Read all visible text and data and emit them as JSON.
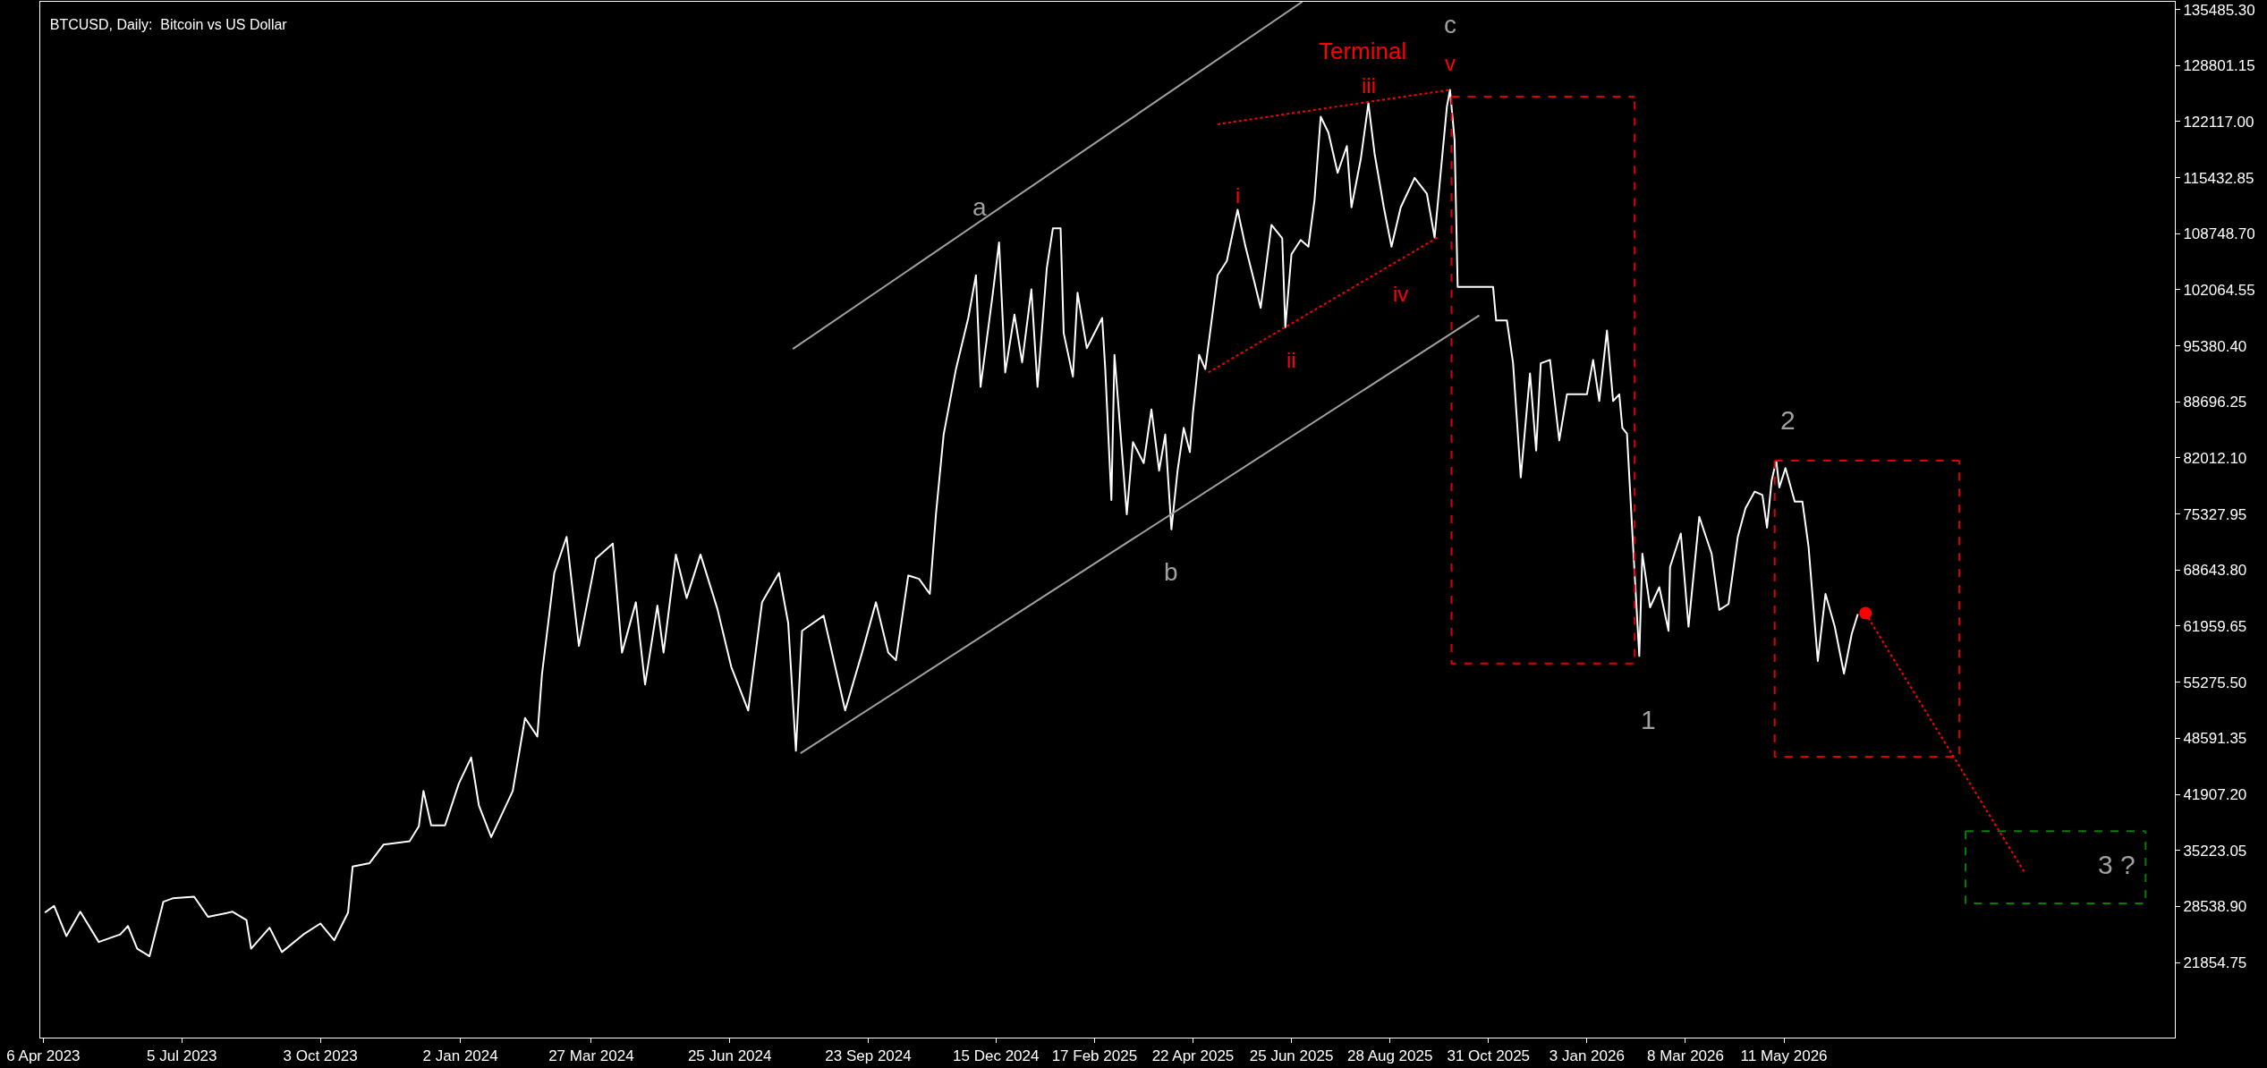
{
  "chart_data": {
    "type": "line",
    "title": "BTCUSD, Daily:  Bitcoin vs US Dollar",
    "grid": false,
    "legend": false,
    "xlim": [
      "2023-04-04",
      "2027-01-20"
    ],
    "ylim": [
      12900,
      136400
    ],
    "xticks": [
      {
        "value": "2023-04-06",
        "label": "6 Apr 2023"
      },
      {
        "value": "2023-07-05",
        "label": "5 Jul 2023"
      },
      {
        "value": "2023-10-03",
        "label": "3 Oct 2023"
      },
      {
        "value": "2024-01-02",
        "label": "2 Jan 2024"
      },
      {
        "value": "2024-03-27",
        "label": "27 Mar 2024"
      },
      {
        "value": "2024-06-25",
        "label": "25 Jun 2024"
      },
      {
        "value": "2024-09-23",
        "label": "23 Sep 2024"
      },
      {
        "value": "2024-12-15",
        "label": "15 Dec 2024"
      },
      {
        "value": "2025-02-17",
        "label": "17 Feb 2025"
      },
      {
        "value": "2025-04-22",
        "label": "22 Apr 2025"
      },
      {
        "value": "2025-06-25",
        "label": "25 Jun 2025"
      },
      {
        "value": "2025-08-28",
        "label": "28 Aug 2025"
      },
      {
        "value": "2025-10-31",
        "label": "31 Oct 2025"
      },
      {
        "value": "2026-01-03",
        "label": "3 Jan 2026"
      },
      {
        "value": "2026-03-08",
        "label": "8 Mar 2026"
      },
      {
        "value": "2026-05-11",
        "label": "11 May 2026"
      }
    ],
    "yticks": [
      {
        "value": 135485.3,
        "label": "135485.30"
      },
      {
        "value": 128801.15,
        "label": "128801.15"
      },
      {
        "value": 122117,
        "label": "122117.00"
      },
      {
        "value": 115432.85,
        "label": "115432.85"
      },
      {
        "value": 108748.7,
        "label": "108748.70"
      },
      {
        "value": 102064.55,
        "label": "102064.55"
      },
      {
        "value": 95380.4,
        "label": "95380.40"
      },
      {
        "value": 88696.25,
        "label": "88696.25"
      },
      {
        "value": 82012.1,
        "label": "82012.10"
      },
      {
        "value": 75327.95,
        "label": "75327.95"
      },
      {
        "value": 68643.8,
        "label": "68643.80"
      },
      {
        "value": 61959.65,
        "label": "61959.65"
      },
      {
        "value": 55275.5,
        "label": "55275.50"
      },
      {
        "value": 48591.35,
        "label": "48591.35"
      },
      {
        "value": 41907.2,
        "label": "41907.20"
      },
      {
        "value": 35223.05,
        "label": "35223.05"
      },
      {
        "value": 28538.9,
        "label": "28538.90"
      },
      {
        "value": 21854.75,
        "label": "21854.75"
      }
    ],
    "series": [
      {
        "type": "line",
        "color": "#ffffff",
        "line_style": "solid",
        "x": [
          "2023-04-07",
          "2023-04-13",
          "2023-04-21",
          "2023-04-30",
          "2023-05-12",
          "2023-05-26",
          "2023-05-31",
          "2023-06-06",
          "2023-06-14",
          "2023-06-23",
          "2023-06-29",
          "2023-07-13",
          "2023-07-22",
          "2023-08-07",
          "2023-08-16",
          "2023-08-19",
          "2023-08-31",
          "2023-09-08",
          "2023-09-22",
          "2023-10-03",
          "2023-10-12",
          "2023-10-21",
          "2023-10-24",
          "2023-11-04",
          "2023-11-13",
          "2023-11-30",
          "2023-12-06",
          "2023-12-09",
          "2023-12-14",
          "2023-12-23",
          "2024-01-01",
          "2024-01-09",
          "2024-01-14",
          "2024-01-22",
          "2024-02-05",
          "2024-02-13",
          "2024-02-21",
          "2024-02-24",
          "2024-03-03",
          "2024-03-11",
          "2024-03-19",
          "2024-03-30",
          "2024-04-10",
          "2024-04-16",
          "2024-04-25",
          "2024-05-01",
          "2024-05-09",
          "2024-05-13",
          "2024-05-21",
          "2024-05-28",
          "2024-06-06",
          "2024-06-17",
          "2024-06-26",
          "2024-07-07",
          "2024-07-16",
          "2024-07-27",
          "2024-08-02",
          "2024-08-07",
          "2024-08-11",
          "2024-08-25",
          "2024-09-08",
          "2024-09-19",
          "2024-09-28",
          "2024-10-06",
          "2024-10-11",
          "2024-10-19",
          "2024-10-26",
          "2024-11-02",
          "2024-11-06",
          "2024-11-11",
          "2024-11-19",
          "2024-11-27",
          "2024-12-02",
          "2024-12-05",
          "2024-12-13",
          "2024-12-17",
          "2024-12-21",
          "2024-12-27",
          "2025-01-01",
          "2025-01-07",
          "2025-01-11",
          "2025-01-17",
          "2025-01-21",
          "2025-01-26",
          "2025-01-28",
          "2025-02-03",
          "2025-02-06",
          "2025-02-12",
          "2025-02-22",
          "2025-02-24",
          "2025-02-28",
          "2025-03-02",
          "2025-03-10",
          "2025-03-14",
          "2025-03-21",
          "2025-03-26",
          "2025-03-31",
          "2025-04-04",
          "2025-04-08",
          "2025-04-12",
          "2025-04-16",
          "2025-04-20",
          "2025-04-22",
          "2025-04-26",
          "2025-04-30",
          "2025-05-08",
          "2025-05-14",
          "2025-05-21",
          "2025-05-26",
          "2025-06-01",
          "2025-06-05",
          "2025-06-12",
          "2025-06-19",
          "2025-06-21",
          "2025-06-25",
          "2025-07-01",
          "2025-07-06",
          "2025-07-10",
          "2025-07-14",
          "2025-07-19",
          "2025-07-25",
          "2025-07-31",
          "2025-08-03",
          "2025-08-09",
          "2025-08-14",
          "2025-08-18",
          "2025-08-24",
          "2025-08-29",
          "2025-09-04",
          "2025-09-13",
          "2025-09-21",
          "2025-09-26",
          "2025-10-04",
          "2025-10-06",
          "2025-10-09",
          "2025-10-11",
          "2025-11-03",
          "2025-11-05",
          "2025-11-12",
          "2025-11-16",
          "2025-11-21",
          "2025-11-27",
          "2025-12-01",
          "2025-12-04",
          "2025-12-10",
          "2025-12-16",
          "2025-12-21",
          "2026-01-03",
          "2026-01-07",
          "2026-01-11",
          "2026-01-16",
          "2026-01-20",
          "2026-01-24",
          "2026-01-26",
          "2026-01-29",
          "2026-02-02",
          "2026-02-06",
          "2026-02-08",
          "2026-02-13",
          "2026-02-19",
          "2026-02-25",
          "2026-02-26",
          "2026-03-05",
          "2026-03-10",
          "2026-03-17",
          "2026-03-25",
          "2026-03-30",
          "2026-04-05",
          "2026-04-11",
          "2026-04-16",
          "2026-04-22",
          "2026-04-27",
          "2026-04-30",
          "2026-05-03",
          "2026-05-06",
          "2026-05-08",
          "2026-05-12",
          "2026-05-18",
          "2026-05-23",
          "2026-05-27",
          "2026-06-02",
          "2026-06-07",
          "2026-06-13",
          "2026-06-19",
          "2026-06-24",
          "2026-06-28"
        ],
        "values": [
          27800,
          28600,
          25000,
          27900,
          24300,
          25200,
          26200,
          23500,
          22600,
          29100,
          29500,
          29700,
          27300,
          27900,
          26900,
          23500,
          26000,
          23100,
          25200,
          26500,
          24500,
          27800,
          33300,
          33700,
          35900,
          36300,
          38100,
          42300,
          38200,
          38200,
          43200,
          46300,
          40600,
          36800,
          42300,
          51000,
          48800,
          56200,
          68300,
          72600,
          59600,
          70000,
          71800,
          58800,
          64800,
          55000,
          64400,
          58800,
          70500,
          65300,
          70500,
          64000,
          57100,
          51900,
          64800,
          68300,
          62300,
          47100,
          61400,
          63200,
          51900,
          58800,
          64800,
          58800,
          57900,
          68000,
          67600,
          65800,
          75300,
          84800,
          92600,
          98700,
          103800,
          90500,
          101700,
          107700,
          92200,
          99100,
          93400,
          102100,
          90500,
          104600,
          109400,
          109400,
          96900,
          91700,
          101700,
          95100,
          98700,
          92600,
          77000,
          94300,
          75300,
          83900,
          81400,
          87800,
          80500,
          84800,
          73500,
          80500,
          85600,
          82700,
          87400,
          94300,
          92600,
          103800,
          105500,
          111600,
          107300,
          102900,
          99900,
          109800,
          108200,
          97600,
          106300,
          108000,
          107200,
          112800,
          122700,
          120800,
          116000,
          119200,
          111900,
          117600,
          124300,
          118300,
          111900,
          107200,
          111900,
          115400,
          113500,
          108300,
          123900,
          125900,
          119900,
          102400,
          102400,
          98400,
          98400,
          93300,
          79700,
          92100,
          82900,
          93300,
          93700,
          84100,
          89600,
          89600,
          93700,
          88800,
          97200,
          88800,
          89600,
          85600,
          84900,
          71400,
          58400,
          70600,
          64200,
          66600,
          61400,
          69000,
          73000,
          61900,
          75000,
          70600,
          63900,
          64600,
          72600,
          76000,
          78000,
          77600,
          73700,
          79300,
          81700,
          78500,
          80800,
          76800,
          76800,
          71400,
          57800,
          65800,
          61900,
          56300,
          61000,
          63400
        ]
      },
      {
        "type": "line",
        "color": "#a0a0a0",
        "line_style": "solid",
        "x": [
          "2024-08-05",
          "2025-07-02"
        ],
        "values": [
          95000,
          136400
        ]
      },
      {
        "type": "line",
        "color": "#a0a0a0",
        "line_style": "solid",
        "x": [
          "2024-08-10",
          "2025-10-25"
        ],
        "values": [
          46800,
          99000
        ]
      },
      {
        "type": "line",
        "color": "#ff0000",
        "line_style": "dotted",
        "x": [
          "2025-05-08",
          "2025-10-06"
        ],
        "values": [
          121800,
          125900
        ]
      },
      {
        "type": "line",
        "color": "#ff0000",
        "line_style": "dotted",
        "x": [
          "2025-05-02",
          "2025-09-28"
        ],
        "values": [
          92200,
          108300
        ]
      },
      {
        "type": "line",
        "color": "#dd0000",
        "line_style": "dashed",
        "x": [
          "2025-10-07",
          "2025-10-07",
          "2026-02-03",
          "2026-02-03"
        ],
        "values": [
          125100,
          57500,
          57500,
          125100
        ]
      },
      {
        "type": "line",
        "color": "#dd0000",
        "line_style": "dashed",
        "x": [
          "2025-10-07",
          "2026-02-03"
        ],
        "values": [
          125100,
          125100
        ]
      },
      {
        "type": "line",
        "color": "#dd0000",
        "line_style": "dashed",
        "x": [
          "2026-05-05",
          "2026-05-05",
          "2026-09-02",
          "2026-09-02"
        ],
        "values": [
          81700,
          46400,
          46400,
          81700
        ]
      },
      {
        "type": "line",
        "color": "#dd0000",
        "line_style": "dashed",
        "x": [
          "2026-05-05",
          "2026-09-02"
        ],
        "values": [
          81700,
          81700
        ]
      },
      {
        "type": "line",
        "color": "#008000",
        "line_style": "dashed",
        "x": [
          "2026-09-06",
          "2026-09-06",
          "2027-01-01",
          "2027-01-01"
        ],
        "values": [
          37500,
          28900,
          28900,
          37500
        ]
      },
      {
        "type": "line",
        "color": "#008000",
        "line_style": "dashed",
        "x": [
          "2026-09-06",
          "2027-01-01"
        ],
        "values": [
          37500,
          37500
        ]
      },
      {
        "type": "line",
        "color": "#ff0000",
        "line_style": "dotted",
        "x": [
          "2026-07-03",
          "2026-10-14"
        ],
        "values": [
          63500,
          32700
        ]
      },
      {
        "type": "scatter",
        "color": "#ff0000",
        "marker": "circle",
        "x": [
          "2026-07-03"
        ],
        "values": [
          63500
        ]
      }
    ],
    "annotations": [
      {
        "text": "a",
        "x": "2024-12-17",
        "y": 107700
      },
      {
        "text": "b",
        "x": "2025-04-08",
        "y": 73500
      },
      {
        "text": "c",
        "x": "2025-10-06",
        "y": 125900
      },
      {
        "text": "Terminal",
        "x": "2025-08-10",
        "y": 124400
      },
      {
        "text": "v",
        "x": "2025-10-06",
        "y": 125900
      },
      {
        "text": "iii",
        "x": "2025-08-14",
        "y": 124300
      },
      {
        "text": "i",
        "x": "2025-05-21",
        "y": 111600
      },
      {
        "text": "ii",
        "x": "2025-06-21",
        "y": 97600
      },
      {
        "text": "iv",
        "x": "2025-08-29",
        "y": 107200
      },
      {
        "text": "1",
        "x": "2026-02-06",
        "y": 58400
      },
      {
        "text": "2",
        "x": "2026-05-06",
        "y": 81700
      },
      {
        "text": "3 ?",
        "x": "2026-10-14",
        "y": 32700
      }
    ]
  }
}
